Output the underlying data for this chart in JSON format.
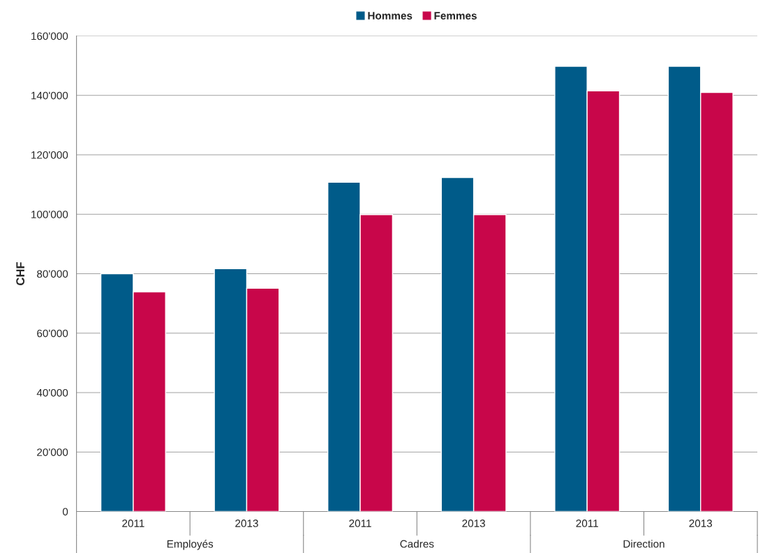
{
  "chart_data": {
    "type": "bar",
    "ylabel": "CHF",
    "categories": [
      "2011",
      "2013",
      "2011",
      "2013",
      "2011",
      "2013"
    ],
    "annotations": [
      "Employés",
      "Cadres",
      "Direction"
    ],
    "series": [
      {
        "name": "Hommes",
        "color": "#005b89",
        "values": [
          80000,
          81700,
          110800,
          112400,
          149800,
          149800
        ]
      },
      {
        "name": "Femmes",
        "color": "#c8064a",
        "values": [
          73900,
          75100,
          99900,
          99900,
          141500,
          141000
        ]
      }
    ],
    "ylim": [
      0,
      160000
    ],
    "yticks": [
      0,
      {
        "value": 20000,
        "label": "20'000"
      },
      {
        "value": 40000,
        "label": "40'000"
      },
      {
        "value": 60000,
        "label": "60'000"
      },
      {
        "value": 80000,
        "label": "80'000"
      },
      {
        "value": 100000,
        "label": "100'000"
      },
      {
        "value": 120000,
        "label": "120'000"
      },
      {
        "value": 140000,
        "label": "140'000"
      },
      {
        "value": 160000,
        "label": "160'000"
      }
    ],
    "grid": "y",
    "legend": "top"
  }
}
